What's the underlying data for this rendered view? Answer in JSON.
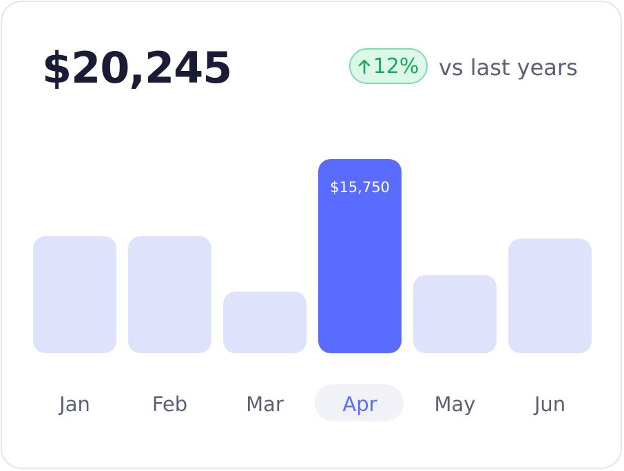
{
  "summary": {
    "total": "$20,245",
    "change": "12%",
    "comparison": "vs last years",
    "change_icon": "arrow-up-icon"
  },
  "colors": {
    "bar": "#dfe2fb",
    "bar_active": "#5a6bff",
    "positive": "#16a85b",
    "positive_bg": "#dcf8e8"
  },
  "chart_data": {
    "type": "bar",
    "categories": [
      "Jan",
      "Feb",
      "Mar",
      "Apr",
      "May",
      "Jun"
    ],
    "values": [
      9500,
      9500,
      5000,
      15750,
      6350,
      9300
    ],
    "highlighted_index": 3,
    "data_labels": [
      "",
      "",
      "",
      "$15,750",
      "",
      ""
    ],
    "title": "",
    "xlabel": "",
    "ylabel": "",
    "grid": false
  }
}
